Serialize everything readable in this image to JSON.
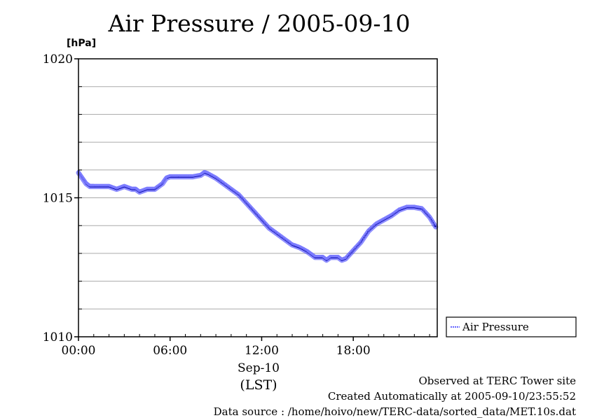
{
  "title": "Air Pressure / 2005-09-10",
  "y_unit": "[hPa]",
  "footer": {
    "line1": "Observed at TERC Tower site",
    "line2": "Created Automatically at 2005-09-10/23:55:52",
    "line3": "Data source : /home/hoivo/new/TERC-data/sorted_data/MET.10s.dat"
  },
  "colors": {
    "series": "#3333ff",
    "line": "#0000aa",
    "grid": "#aaaaaa"
  },
  "chart_data": {
    "type": "line",
    "title": "Air Pressure / 2005-09-10",
    "ylabel": "[hPa]",
    "xlabel_date": "Sep-10",
    "xlabel_tz": "(LST)",
    "ylim": [
      1010,
      1020
    ],
    "xlim_hours": [
      0,
      23.5
    ],
    "y_ticks": [
      {
        "value": 1010,
        "label": "1010"
      },
      {
        "value": 1015,
        "label": "1015"
      },
      {
        "value": 1020,
        "label": "1020"
      }
    ],
    "y_grid_step": 1,
    "x_ticks": [
      {
        "value": 0,
        "label": "00:00"
      },
      {
        "value": 6,
        "label": "06:00"
      },
      {
        "value": 12,
        "label": "12:00"
      },
      {
        "value": 18,
        "label": "18:00"
      }
    ],
    "grid": true,
    "legend_position": "right",
    "series": [
      {
        "name": "Air Pressure",
        "x": [
          0,
          0.25,
          0.5,
          0.75,
          1,
          1.5,
          2,
          2.5,
          3,
          3.5,
          3.75,
          4,
          4.5,
          5,
          5.5,
          5.75,
          6,
          6.5,
          7,
          7.5,
          8,
          8.25,
          8.5,
          9,
          9.5,
          10,
          10.5,
          11,
          11.5,
          12,
          12.5,
          13,
          13.5,
          14,
          14.5,
          15,
          15.25,
          15.5,
          16,
          16.25,
          16.5,
          17,
          17.25,
          17.5,
          18,
          18.5,
          19,
          19.5,
          20,
          20.5,
          21,
          21.5,
          22,
          22.5,
          23,
          23.4
        ],
        "values": [
          1015.9,
          1015.7,
          1015.5,
          1015.4,
          1015.4,
          1015.4,
          1015.4,
          1015.3,
          1015.4,
          1015.3,
          1015.3,
          1015.2,
          1015.3,
          1015.3,
          1015.5,
          1015.7,
          1015.75,
          1015.75,
          1015.75,
          1015.75,
          1015.8,
          1015.9,
          1015.85,
          1015.7,
          1015.5,
          1015.3,
          1015.1,
          1014.8,
          1014.5,
          1014.2,
          1013.9,
          1013.7,
          1013.5,
          1013.3,
          1013.2,
          1013.05,
          1012.95,
          1012.85,
          1012.85,
          1012.75,
          1012.85,
          1012.85,
          1012.75,
          1012.8,
          1013.1,
          1013.4,
          1013.8,
          1014.05,
          1014.2,
          1014.35,
          1014.55,
          1014.65,
          1014.65,
          1014.6,
          1014.3,
          1013.95
        ]
      }
    ]
  }
}
